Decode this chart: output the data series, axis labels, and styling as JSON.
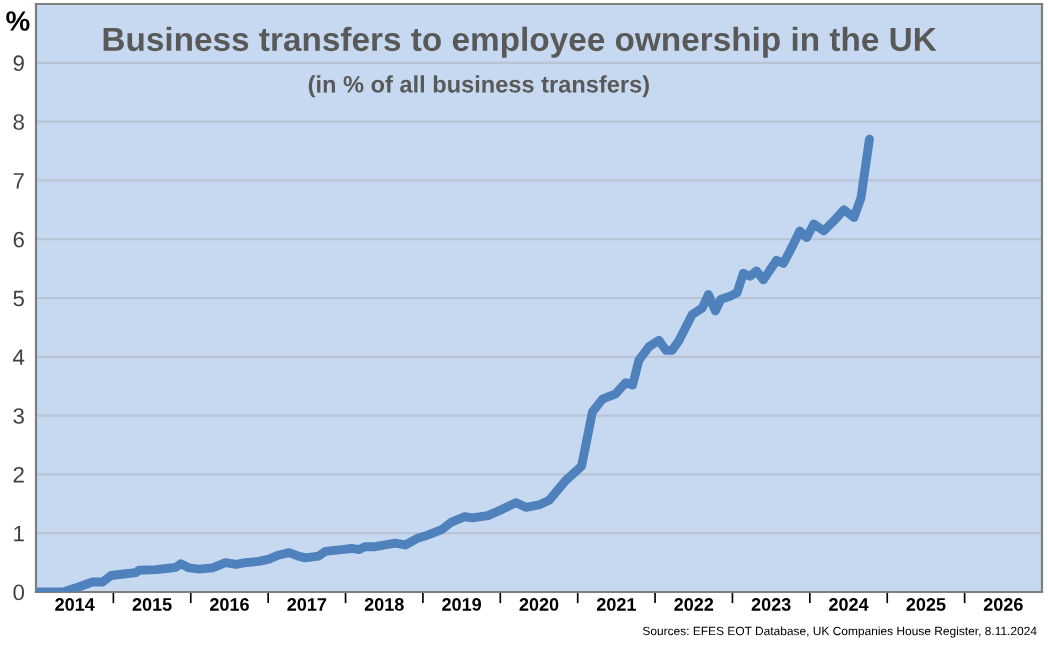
{
  "chart_data": {
    "type": "line",
    "title": "Business transfers to employee ownership in the UK",
    "subtitle": "(in % of all business transfers)",
    "ylabel": "%",
    "annotations": [
      "Sources: EFES EOT Database, UK Companies House Register, 8.11.2024"
    ],
    "series": [
      {
        "color": "#4f81bd",
        "x": [
          2014.0,
          2014.35,
          2014.56,
          2014.73,
          2014.86,
          2014.97,
          2015.16,
          2015.29,
          2015.33,
          2015.55,
          2015.68,
          2015.81,
          2015.87,
          2015.98,
          2016.11,
          2016.28,
          2016.45,
          2016.58,
          2016.71,
          2016.88,
          2017.01,
          2017.14,
          2017.27,
          2017.39,
          2017.48,
          2017.65,
          2017.74,
          2017.95,
          2018.08,
          2018.17,
          2018.25,
          2018.38,
          2018.55,
          2018.64,
          2018.77,
          2018.94,
          2019.07,
          2019.24,
          2019.37,
          2019.54,
          2019.64,
          2019.84,
          2020.03,
          2020.2,
          2020.33,
          2020.5,
          2020.63,
          2020.84,
          2021.05,
          2021.19,
          2021.32,
          2021.49,
          2021.62,
          2021.71,
          2021.79,
          2021.92,
          2022.05,
          2022.14,
          2022.22,
          2022.31,
          2022.48,
          2022.61,
          2022.69,
          2022.78,
          2022.85,
          2022.97,
          2023.06,
          2023.14,
          2023.23,
          2023.31,
          2023.4,
          2023.57,
          2023.66,
          2023.79,
          2023.87,
          2023.96,
          2024.05,
          2024.18,
          2024.31,
          2024.44,
          2024.57,
          2024.66,
          2024.77
        ],
        "values": [
          0,
          0,
          0.09,
          0.17,
          0.17,
          0.28,
          0.31,
          0.33,
          0.37,
          0.38,
          0.4,
          0.42,
          0.48,
          0.41,
          0.39,
          0.41,
          0.5,
          0.47,
          0.5,
          0.52,
          0.56,
          0.63,
          0.67,
          0.61,
          0.58,
          0.61,
          0.69,
          0.72,
          0.74,
          0.72,
          0.77,
          0.77,
          0.81,
          0.83,
          0.8,
          0.92,
          0.97,
          1.06,
          1.19,
          1.28,
          1.26,
          1.3,
          1.41,
          1.52,
          1.44,
          1.48,
          1.56,
          1.89,
          2.14,
          3.06,
          3.28,
          3.37,
          3.56,
          3.52,
          3.94,
          4.17,
          4.28,
          4.11,
          4.11,
          4.28,
          4.72,
          4.83,
          5.06,
          4.78,
          4.98,
          5.03,
          5.09,
          5.42,
          5.37,
          5.46,
          5.31,
          5.64,
          5.59,
          5.92,
          6.14,
          6.03,
          6.26,
          6.14,
          6.31,
          6.5,
          6.37,
          6.7,
          7.7
        ]
      }
    ],
    "xlim": [
      2014,
      2027
    ],
    "xticks": [
      {
        "value": 2014.5,
        "label": "2014"
      },
      {
        "value": 2015.5,
        "label": "2015"
      },
      {
        "value": 2016.5,
        "label": "2016"
      },
      {
        "value": 2017.5,
        "label": "2017"
      },
      {
        "value": 2018.5,
        "label": "2018"
      },
      {
        "value": 2019.5,
        "label": "2019"
      },
      {
        "value": 2020.5,
        "label": "2020"
      },
      {
        "value": 2021.5,
        "label": "2021"
      },
      {
        "value": 2022.5,
        "label": "2022"
      },
      {
        "value": 2023.5,
        "label": "2023"
      },
      {
        "value": 2024.5,
        "label": "2024"
      },
      {
        "value": 2025.5,
        "label": "2025"
      },
      {
        "value": 2026.5,
        "label": "2026"
      },
      {
        "value": 2015,
        "label": null
      },
      {
        "value": 2016,
        "label": null
      },
      {
        "value": 2017,
        "label": null
      },
      {
        "value": 2018,
        "label": null
      },
      {
        "value": 2019,
        "label": null
      },
      {
        "value": 2020,
        "label": null
      },
      {
        "value": 2021,
        "label": null
      },
      {
        "value": 2022,
        "label": null
      },
      {
        "value": 2023,
        "label": null
      },
      {
        "value": 2024,
        "label": null
      },
      {
        "value": 2025,
        "label": null
      },
      {
        "value": 2026,
        "label": null
      }
    ],
    "ylim": [
      0,
      10
    ],
    "yticks": [
      0,
      1,
      2,
      3,
      4,
      5,
      6,
      7,
      8,
      9
    ],
    "grid": "y",
    "line_style": "solid"
  }
}
